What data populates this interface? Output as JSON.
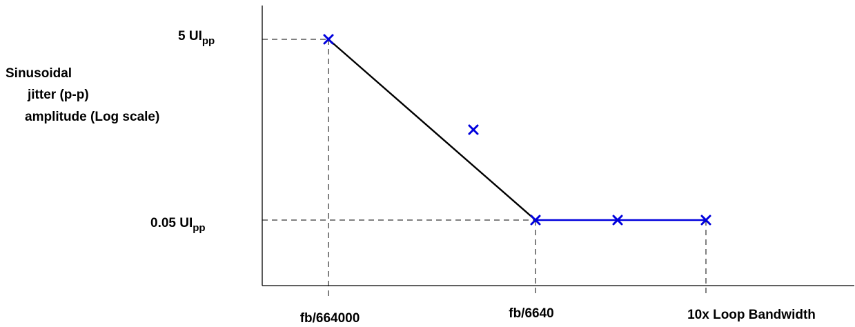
{
  "chart_data": {
    "type": "line",
    "title": "",
    "ylabel": {
      "line1": "Sinusoidal",
      "line2": "jitter (p-p)",
      "line3": "amplitude (Log scale)"
    },
    "xlabel": "",
    "y_scale": "log",
    "x_scale": "log",
    "grid": false,
    "y_ticks": [
      {
        "value": 5,
        "main": "5 UI",
        "sub": "pp"
      },
      {
        "value": 0.05,
        "main": "0.05 UI",
        "sub": "pp"
      }
    ],
    "x_ticks": [
      {
        "id": "t1",
        "label": "fb/664000"
      },
      {
        "id": "t2",
        "label": "fb/6640"
      },
      {
        "id": "t3",
        "label": "10x Loop Bandwidth"
      }
    ],
    "series": [
      {
        "color": "#000000",
        "points": [
          {
            "x": "fb/664000",
            "y": 5
          },
          {
            "x": "fb/6640",
            "y": 0.05
          }
        ]
      },
      {
        "color": "#0000dd",
        "points": [
          {
            "x": "fb/6640",
            "y": 0.05
          },
          {
            "x": "10x Loop Bandwidth",
            "y": 0.05
          }
        ]
      }
    ],
    "markers": {
      "symbol": "x",
      "color": "#0000dd",
      "points": [
        {
          "x": "fb/664000",
          "y": 5
        },
        {
          "x": "between",
          "y": 0.5
        },
        {
          "x": "fb/6640",
          "y": 0.05
        },
        {
          "x": "between",
          "y": 0.05
        },
        {
          "x": "10x Loop Bandwidth",
          "y": 0.05
        }
      ]
    }
  }
}
